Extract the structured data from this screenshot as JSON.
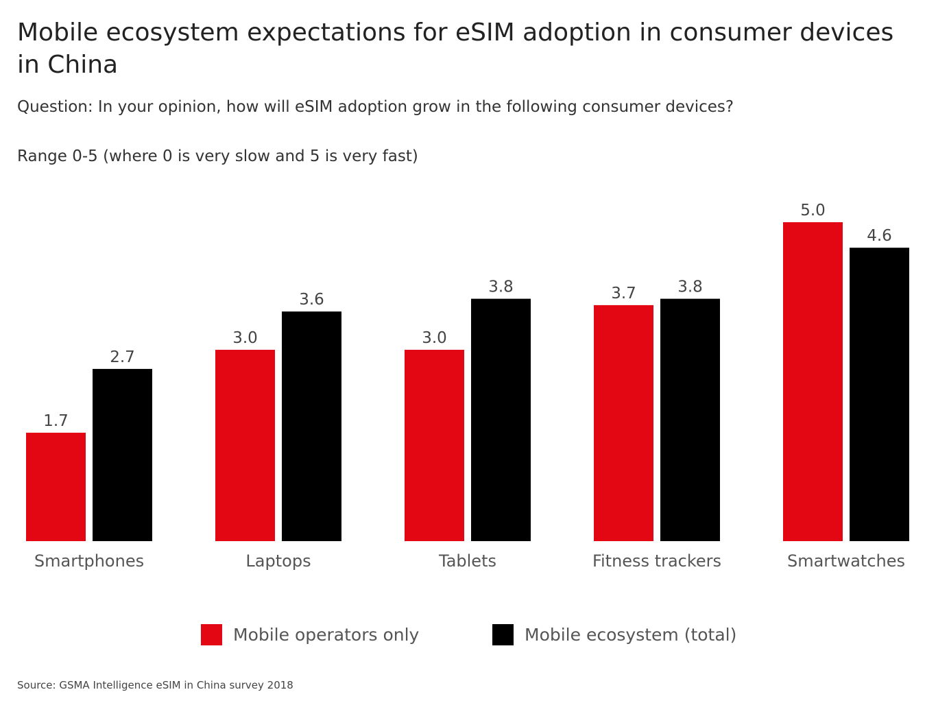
{
  "title": "Mobile ecosystem expectations for eSIM adoption in consumer devices in China",
  "subtitle": "Question: In your opinion, how will eSIM adoption grow in the following consumer devices?",
  "range_note": "Range 0-5 (where 0 is very slow and 5 is very fast)",
  "source": "Source: GSMA Intelligence eSIM in China survey 2018",
  "chart_data": {
    "type": "bar",
    "title": "Mobile ecosystem expectations for eSIM adoption in consumer devices in China",
    "categories": [
      "Smartphones",
      "Laptops",
      "Tablets",
      "Fitness trackers",
      "Smartwatches"
    ],
    "series": [
      {
        "name": "Mobile operators only",
        "color": "#e30613",
        "values": [
          1.7,
          3.0,
          3.0,
          3.7,
          5.0
        ],
        "labels": [
          "1.7",
          "3.0",
          "3.0",
          "3.7",
          "5.0"
        ]
      },
      {
        "name": "Mobile ecosystem (total)",
        "color": "#000000",
        "values": [
          2.7,
          3.6,
          3.8,
          3.8,
          4.6
        ],
        "labels": [
          "2.7",
          "3.6",
          "3.8",
          "3.8",
          "4.6"
        ]
      }
    ],
    "ylim": [
      0,
      5
    ],
    "grid": false,
    "legend": "bottom-center",
    "xlabel": "",
    "ylabel": ""
  }
}
